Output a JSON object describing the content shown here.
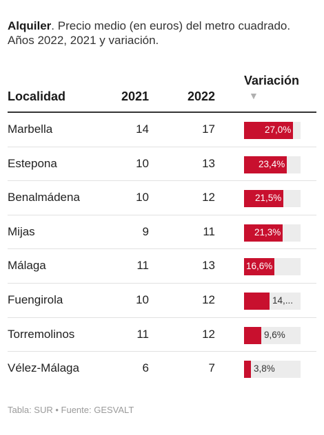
{
  "intro": {
    "bold": "Alquiler",
    "rest": ". Precio medio (en euros) del metro cuadrado. Años 2022, 2021 y variación."
  },
  "table": {
    "headers": {
      "localidad": "Localidad",
      "y2021": "2021",
      "y2022": "2022",
      "variacion": "Variación",
      "sort_arrow": "▼"
    }
  },
  "chart_data": {
    "type": "table",
    "columns": [
      "Localidad",
      "2021",
      "2022",
      "Variación"
    ],
    "rows": [
      {
        "localidad": "Marbella",
        "y2021": "14",
        "y2022": "17",
        "variacion": 27.0,
        "label": "27,0%"
      },
      {
        "localidad": "Estepona",
        "y2021": "10",
        "y2022": "13",
        "variacion": 23.4,
        "label": "23,4%"
      },
      {
        "localidad": "Benalmádena",
        "y2021": "10",
        "y2022": "12",
        "variacion": 21.5,
        "label": "21,5%"
      },
      {
        "localidad": "Mijas",
        "y2021": "9",
        "y2022": "11",
        "variacion": 21.3,
        "label": "21,3%"
      },
      {
        "localidad": "Málaga",
        "y2021": "11",
        "y2022": "13",
        "variacion": 16.6,
        "label": "16,6%"
      },
      {
        "localidad": "Fuengirola",
        "y2021": "10",
        "y2022": "12",
        "variacion": 14.0,
        "label": "14,..."
      },
      {
        "localidad": "Torremolinos",
        "y2021": "11",
        "y2022": "12",
        "variacion": 9.6,
        "label": "9,6%"
      },
      {
        "localidad": "Vélez-Málaga",
        "y2021": "6",
        "y2022": "7",
        "variacion": 3.8,
        "label": "3,8%"
      }
    ],
    "variacion_scale_max": 31
  },
  "colors": {
    "bar": "#c8102e",
    "track": "#ececec"
  },
  "footer": "Tabla: SUR • Fuente: GESVALT"
}
